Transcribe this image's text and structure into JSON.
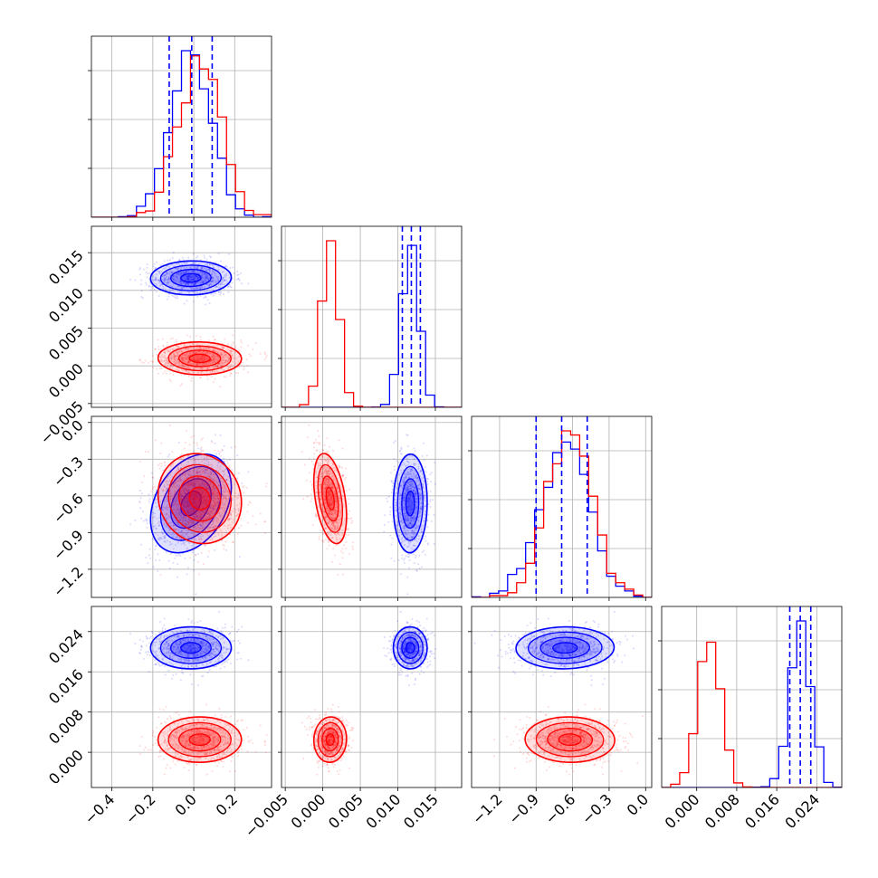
{
  "chart_data": {
    "type": "corner",
    "colors": {
      "series_a": "#0000ff",
      "series_b": "#ff0000"
    },
    "grid": true,
    "legend": "none",
    "title": "",
    "parameters": [
      {
        "range": [
          -0.5,
          0.38
        ],
        "ticks": [
          -0.4,
          -0.2,
          0.0,
          0.2
        ],
        "tick_labels": [
          "−0.4",
          "−0.2",
          "0.0",
          "0.2"
        ]
      },
      {
        "range": [
          -0.0055,
          0.0185
        ],
        "ticks": [
          -0.005,
          0.0,
          0.005,
          0.01,
          0.015
        ],
        "tick_labels": [
          "−0.005",
          "0.000",
          "0.005",
          "0.010",
          "0.015"
        ]
      },
      {
        "range": [
          -1.43,
          0.05
        ],
        "ticks": [
          -1.2,
          -0.9,
          -0.6,
          -0.3,
          0.0
        ],
        "tick_labels": [
          "−1.2",
          "−0.9",
          "−0.6",
          "−0.3",
          "0.0"
        ]
      },
      {
        "range": [
          -0.007,
          0.029
        ],
        "ticks": [
          0.0,
          0.008,
          0.016,
          0.024
        ],
        "tick_labels": [
          "0.000",
          "0.008",
          "0.016",
          "0.024"
        ]
      }
    ],
    "series": [
      {
        "color": "#0000ff",
        "mean": [
          -0.01,
          0.0117,
          -0.66,
          0.0207
        ],
        "sd": [
          0.1,
          0.0011,
          0.2,
          0.0021
        ],
        "corr_02": 0.35,
        "quantiles": [
          [
            -0.12,
            -0.01,
            0.09
          ],
          [
            0.0106,
            0.0118,
            0.013
          ],
          [
            -0.9,
            -0.69,
            -0.48
          ],
          [
            0.0186,
            0.0207,
            0.0228
          ]
        ]
      },
      {
        "color": "#ff0000",
        "mean": [
          0.03,
          0.001,
          -0.62,
          0.0025
        ],
        "sd": [
          0.1,
          0.0011,
          0.18,
          0.0022
        ],
        "corr_02": -0.1,
        "corr_12": -0.4
      }
    ]
  }
}
